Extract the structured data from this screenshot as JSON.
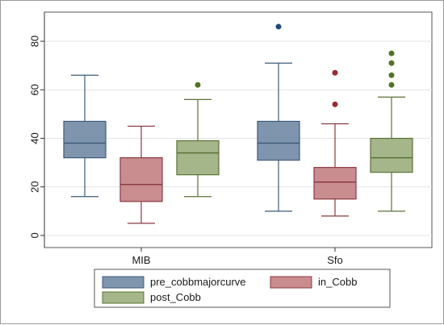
{
  "chart_data": {
    "type": "boxplot",
    "categories": [
      "MIB",
      "Sfo"
    ],
    "ylim": [
      -5,
      92
    ],
    "yticks": [
      0,
      20,
      40,
      60,
      80
    ],
    "ytick_labels": [
      "0",
      "20",
      "40",
      "60",
      "80"
    ],
    "grid": true,
    "legend_position": "bottom",
    "series": [
      {
        "name": "pre_cobbmajorcurve",
        "color": "#7e95ad",
        "stroke": "#3f5a78",
        "outlier_color": "#1f4a78",
        "boxes": [
          {
            "category": "MIB",
            "min": 16,
            "q1": 32,
            "median": 38,
            "q3": 47,
            "max": 66,
            "outliers": []
          },
          {
            "category": "Sfo",
            "min": 10,
            "q1": 31,
            "median": 38,
            "q3": 47,
            "max": 71,
            "outliers": [
              86
            ]
          }
        ]
      },
      {
        "name": "in_Cobb",
        "color": "#c98d90",
        "stroke": "#8a3a40",
        "outlier_color": "#9a2a33",
        "boxes": [
          {
            "category": "MIB",
            "min": 5,
            "q1": 14,
            "median": 21,
            "q3": 32,
            "max": 45,
            "outliers": []
          },
          {
            "category": "Sfo",
            "min": 8,
            "q1": 15,
            "median": 22,
            "q3": 28,
            "max": 46,
            "outliers": [
              54,
              67
            ]
          }
        ]
      },
      {
        "name": "post_Cobb",
        "color": "#a4b68a",
        "stroke": "#5b7236",
        "outlier_color": "#52722a",
        "boxes": [
          {
            "category": "MIB",
            "min": 16,
            "q1": 25,
            "median": 34,
            "q3": 39,
            "max": 56,
            "outliers": [
              62
            ]
          },
          {
            "category": "Sfo",
            "min": 10,
            "q1": 26,
            "median": 32,
            "q3": 40,
            "max": 57,
            "outliers": [
              62,
              66,
              71,
              75
            ]
          }
        ]
      }
    ]
  }
}
